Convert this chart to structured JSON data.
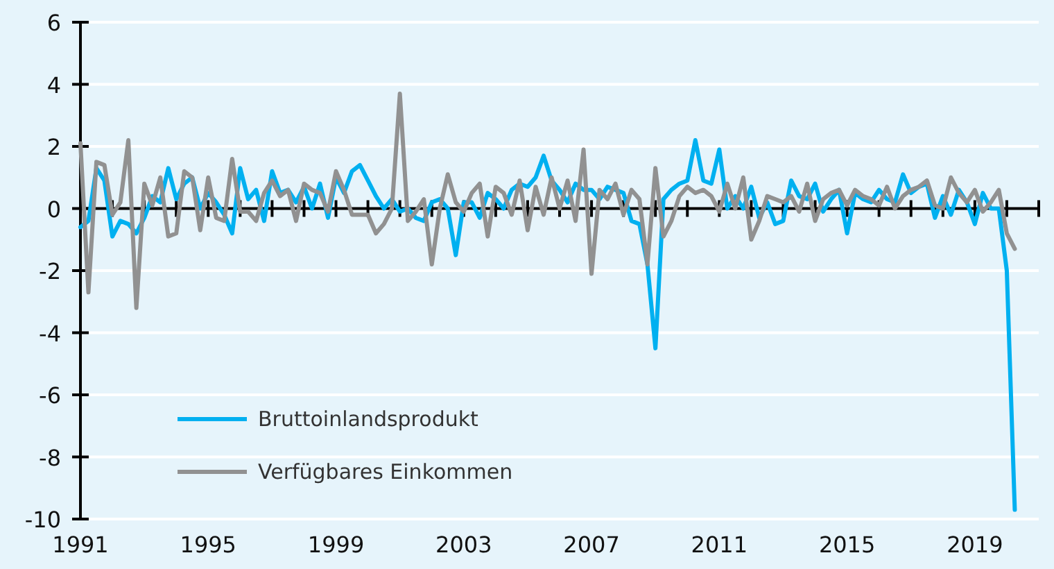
{
  "chart_data": {
    "type": "line",
    "x": [
      1991,
      1991.25,
      1991.5,
      1991.75,
      1992,
      1992.25,
      1992.5,
      1992.75,
      1993,
      1993.25,
      1993.5,
      1993.75,
      1994,
      1994.25,
      1994.5,
      1994.75,
      1995,
      1995.25,
      1995.5,
      1995.75,
      1996,
      1996.25,
      1996.5,
      1996.75,
      1997,
      1997.25,
      1997.5,
      1997.75,
      1998,
      1998.25,
      1998.5,
      1998.75,
      1999,
      1999.25,
      1999.5,
      1999.75,
      2000,
      2000.25,
      2000.5,
      2000.75,
      2001,
      2001.25,
      2001.5,
      2001.75,
      2002,
      2002.25,
      2002.5,
      2002.75,
      2003,
      2003.25,
      2003.5,
      2003.75,
      2004,
      2004.25,
      2004.5,
      2004.75,
      2005,
      2005.25,
      2005.5,
      2005.75,
      2006,
      2006.25,
      2006.5,
      2006.75,
      2007,
      2007.25,
      2007.5,
      2007.75,
      2008,
      2008.25,
      2008.5,
      2008.75,
      2009,
      2009.25,
      2009.5,
      2009.75,
      2010,
      2010.25,
      2010.5,
      2010.75,
      2011,
      2011.25,
      2011.5,
      2011.75,
      2012,
      2012.25,
      2012.5,
      2012.75,
      2013,
      2013.25,
      2013.5,
      2013.75,
      2014,
      2014.25,
      2014.5,
      2014.75,
      2015,
      2015.25,
      2015.5,
      2015.75,
      2016,
      2016.25,
      2016.5,
      2016.75,
      2017,
      2017.25,
      2017.5,
      2017.75,
      2018,
      2018.25,
      2018.5,
      2018.75,
      2019,
      2019.25,
      2019.5,
      2019.75,
      2020,
      2020.25
    ],
    "series": [
      {
        "name": "Bruttoinlandsprodukt",
        "color": "#00b0f0",
        "values": [
          -0.6,
          -0.4,
          1.3,
          0.9,
          -0.9,
          -0.4,
          -0.5,
          -0.8,
          -0.3,
          0.4,
          0.2,
          1.3,
          0.3,
          0.8,
          1.0,
          0.0,
          0.5,
          0.2,
          -0.2,
          -0.8,
          1.3,
          0.3,
          0.6,
          -0.4,
          1.2,
          0.5,
          0.6,
          0.2,
          0.7,
          0.0,
          0.8,
          -0.3,
          1.0,
          0.5,
          1.2,
          1.4,
          0.9,
          0.4,
          0.0,
          0.3,
          -0.1,
          0.0,
          -0.3,
          -0.4,
          0.2,
          0.3,
          0.0,
          -1.5,
          0.2,
          0.2,
          -0.3,
          0.5,
          0.3,
          0.0,
          0.6,
          0.8,
          0.7,
          1.0,
          1.7,
          0.9,
          0.6,
          0.2,
          0.8,
          0.6,
          0.6,
          0.3,
          0.7,
          0.6,
          0.5,
          -0.4,
          -0.5,
          -1.8,
          -4.5,
          0.3,
          0.6,
          0.8,
          0.9,
          2.2,
          0.9,
          0.8,
          1.9,
          0.0,
          0.4,
          0.0,
          0.7,
          -0.3,
          0.2,
          -0.5,
          -0.4,
          0.9,
          0.4,
          0.3,
          0.8,
          -0.1,
          0.3,
          0.6,
          -0.8,
          0.5,
          0.3,
          0.2,
          0.6,
          0.3,
          0.2,
          1.1,
          0.5,
          0.7,
          0.8,
          -0.3,
          0.4,
          -0.2,
          0.6,
          0.2,
          -0.5,
          0.5,
          0.0,
          0.0,
          -2.0,
          -9.7
        ]
      },
      {
        "name": "Verfügbares Einkommen",
        "color": "#919191",
        "values": [
          2.1,
          -2.7,
          1.5,
          1.4,
          -0.2,
          0.2,
          2.2,
          -3.2,
          0.8,
          0.1,
          1.0,
          -0.9,
          -0.8,
          1.2,
          1.0,
          -0.7,
          1.0,
          -0.3,
          -0.4,
          1.6,
          -0.1,
          -0.1,
          -0.4,
          0.5,
          0.9,
          0.4,
          0.6,
          -0.4,
          0.8,
          0.6,
          0.5,
          -0.1,
          1.2,
          0.6,
          -0.2,
          -0.2,
          -0.2,
          -0.8,
          -0.5,
          0.0,
          3.7,
          -0.4,
          -0.1,
          0.3,
          -1.8,
          0.0,
          1.1,
          0.2,
          -0.1,
          0.5,
          0.8,
          -0.9,
          0.7,
          0.5,
          -0.2,
          0.9,
          -0.7,
          0.7,
          -0.2,
          1.0,
          0.0,
          0.9,
          -0.4,
          1.9,
          -2.1,
          0.6,
          0.3,
          0.8,
          -0.2,
          0.6,
          0.3,
          -1.8,
          1.3,
          -0.9,
          -0.4,
          0.4,
          0.7,
          0.5,
          0.6,
          0.4,
          -0.1,
          0.8,
          0.0,
          1.0,
          -1.0,
          -0.4,
          0.4,
          0.3,
          0.2,
          0.4,
          -0.1,
          0.8,
          -0.4,
          0.3,
          0.5,
          0.6,
          0.1,
          0.6,
          0.4,
          0.3,
          0.1,
          0.7,
          0.0,
          0.4,
          0.6,
          0.7,
          0.9,
          0.1,
          0.0,
          1.0,
          0.5,
          0.2,
          0.6,
          -0.1,
          0.2,
          0.6,
          -0.8,
          -1.3
        ]
      }
    ],
    "xlim": [
      1991,
      2021
    ],
    "xticks": [
      1991,
      {
        "value": 1992,
        "label": null
      },
      {
        "value": 1993,
        "label": null
      },
      {
        "value": 1994,
        "label": null
      },
      1995,
      {
        "value": 1996,
        "label": null
      },
      {
        "value": 1997,
        "label": null
      },
      {
        "value": 1998,
        "label": null
      },
      1999,
      {
        "value": 2000,
        "label": null
      },
      {
        "value": 2001,
        "label": null
      },
      {
        "value": 2002,
        "label": null
      },
      2003,
      {
        "value": 2004,
        "label": null
      },
      {
        "value": 2005,
        "label": null
      },
      {
        "value": 2006,
        "label": null
      },
      2007,
      {
        "value": 2008,
        "label": null
      },
      {
        "value": 2009,
        "label": null
      },
      {
        "value": 2010,
        "label": null
      },
      2011,
      {
        "value": 2012,
        "label": null
      },
      {
        "value": 2013,
        "label": null
      },
      {
        "value": 2014,
        "label": null
      },
      2015,
      {
        "value": 2016,
        "label": null
      },
      {
        "value": 2017,
        "label": null
      },
      {
        "value": 2018,
        "label": null
      },
      2019,
      {
        "value": 2020,
        "label": null
      },
      {
        "value": 2021,
        "label": null
      }
    ],
    "ylim": [
      -10,
      6
    ],
    "yticks": [
      -10,
      -8,
      -6,
      -4,
      -2,
      0,
      2,
      4,
      6
    ],
    "grid": "y",
    "legend": "bottom left",
    "marker": "none",
    "line_style": "solid"
  }
}
